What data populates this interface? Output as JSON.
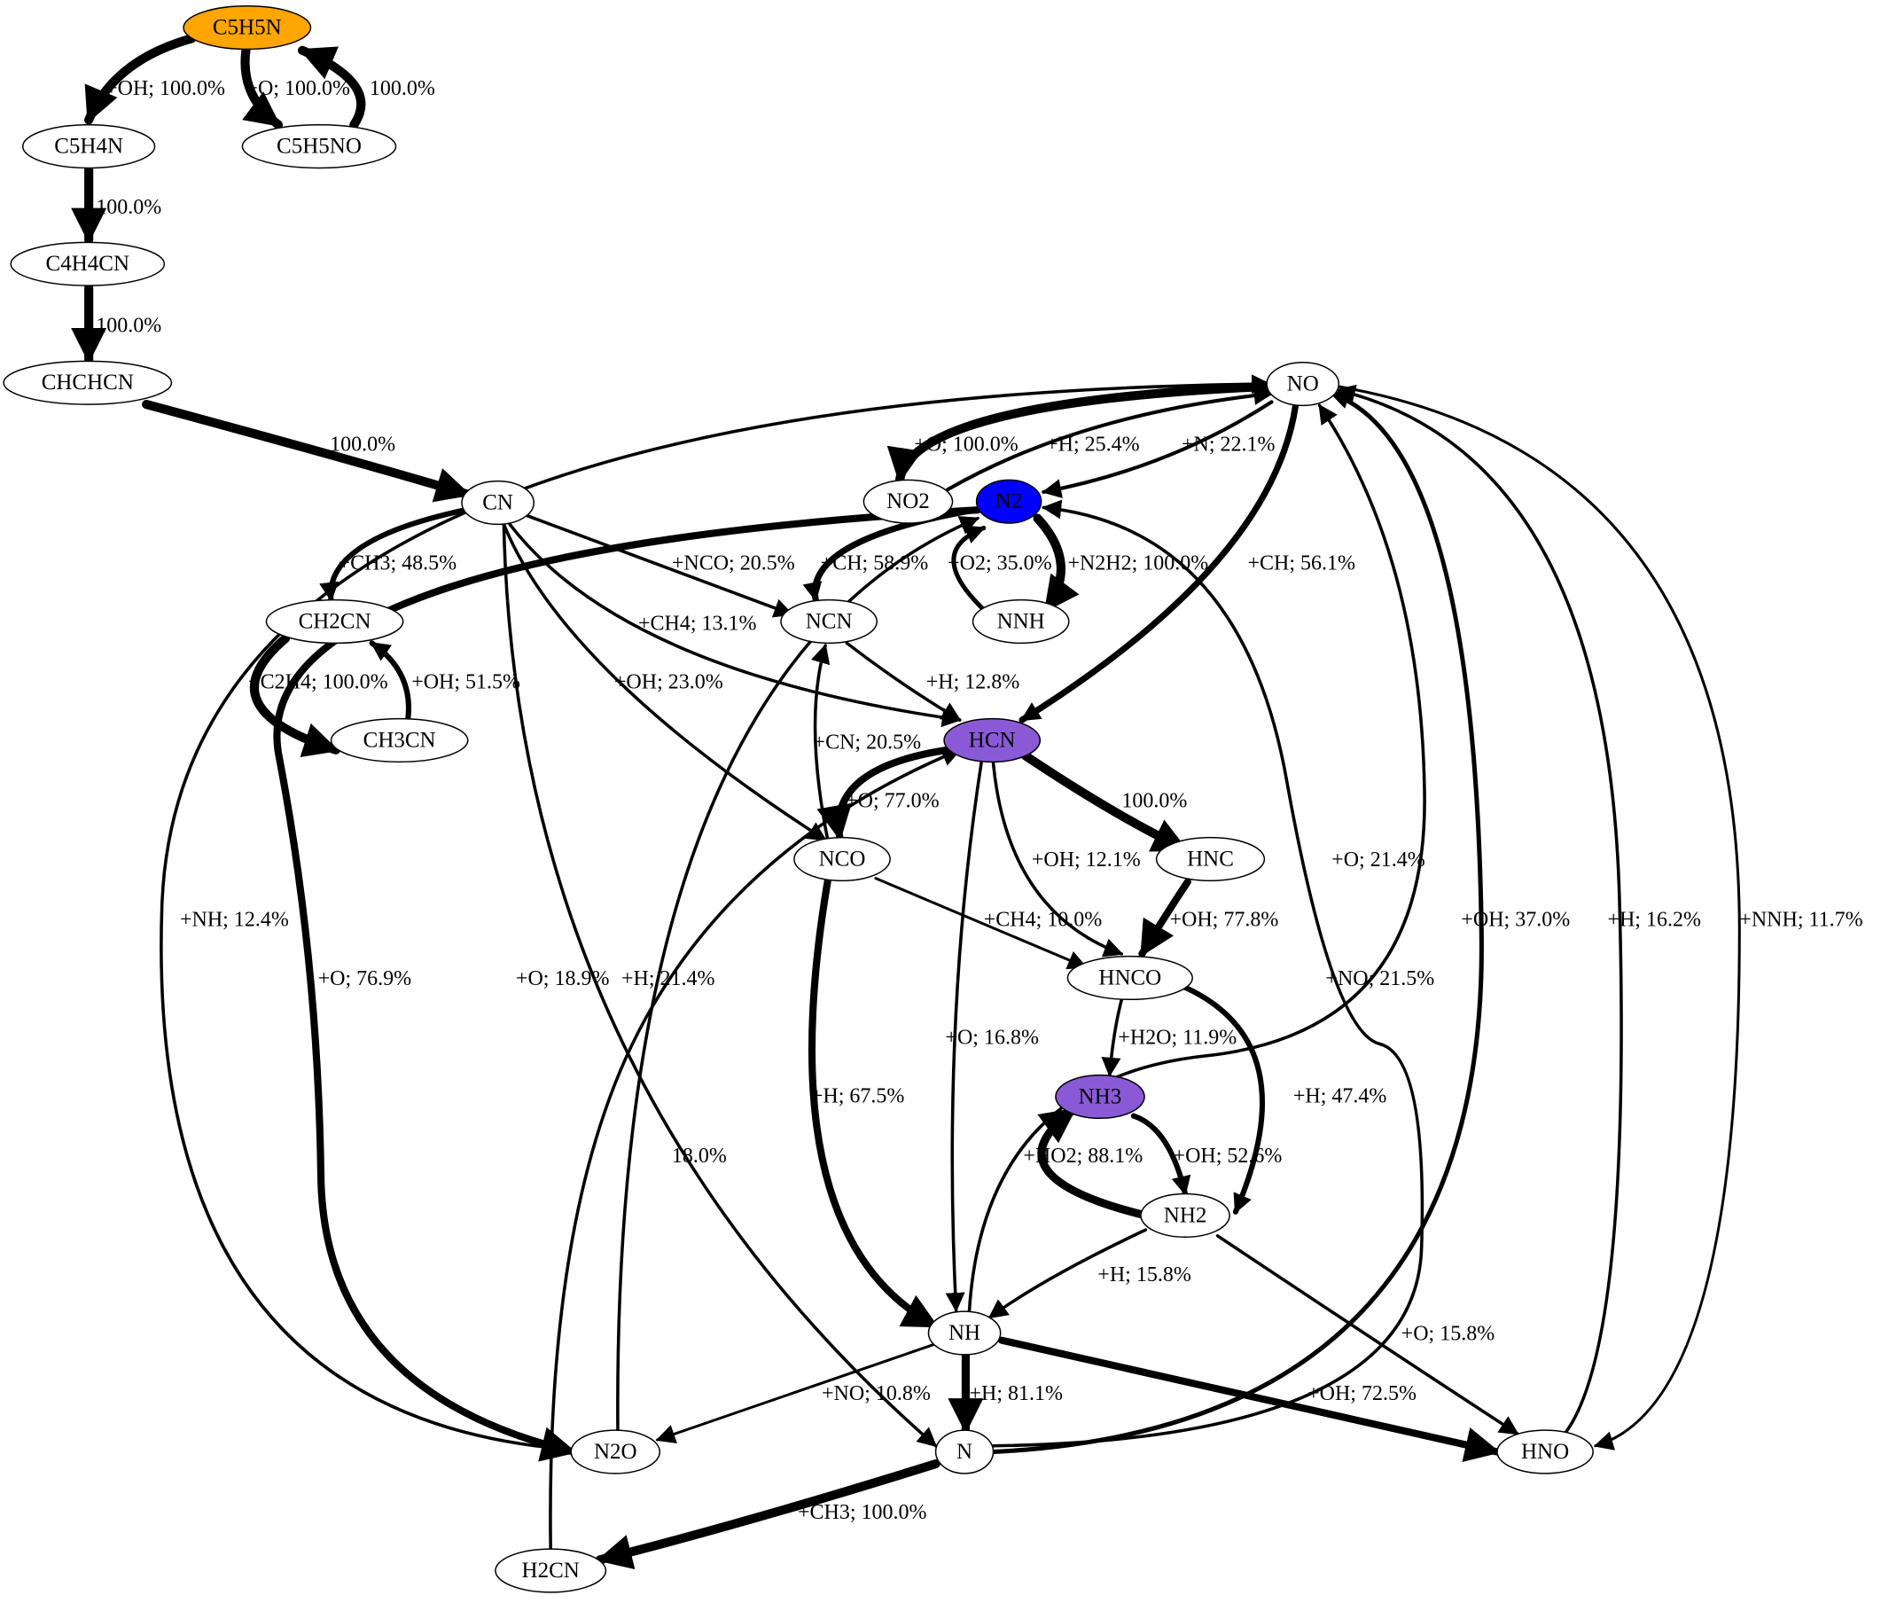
{
  "colors": {
    "default_node_fill": "#ffffff",
    "source_fill": "#ffa500",
    "n2_fill": "#0000ff",
    "product_fill": "#8a5ad6"
  },
  "nodes": [
    {
      "id": "C5H5N",
      "label": "C5H5N",
      "fill": "#ffa500"
    },
    {
      "id": "C5H4N",
      "label": "C5H4N"
    },
    {
      "id": "C5H5NO",
      "label": "C5H5NO"
    },
    {
      "id": "C4H4CN",
      "label": "C4H4CN"
    },
    {
      "id": "CHCHCN",
      "label": "CHCHCN"
    },
    {
      "id": "NO",
      "label": "NO"
    },
    {
      "id": "CN",
      "label": "CN"
    },
    {
      "id": "NO2",
      "label": "NO2"
    },
    {
      "id": "N2",
      "label": "N2",
      "fill": "#0000ff"
    },
    {
      "id": "CH2CN",
      "label": "CH2CN"
    },
    {
      "id": "NCN",
      "label": "NCN"
    },
    {
      "id": "NNH",
      "label": "NNH"
    },
    {
      "id": "CH3CN",
      "label": "CH3CN"
    },
    {
      "id": "HCN",
      "label": "HCN",
      "fill": "#8a5ad6"
    },
    {
      "id": "NCO",
      "label": "NCO"
    },
    {
      "id": "HNC",
      "label": "HNC"
    },
    {
      "id": "HNCO",
      "label": "HNCO"
    },
    {
      "id": "NH3",
      "label": "NH3",
      "fill": "#8a5ad6"
    },
    {
      "id": "NH2",
      "label": "NH2"
    },
    {
      "id": "NH",
      "label": "NH"
    },
    {
      "id": "N2O",
      "label": "N2O"
    },
    {
      "id": "N",
      "label": "N"
    },
    {
      "id": "HNO",
      "label": "HNO"
    },
    {
      "id": "H2CN",
      "label": "H2CN"
    }
  ],
  "edges": [
    {
      "from": "C5H5N",
      "to": "C5H4N",
      "label": "+OH; 100.0%",
      "width": 10
    },
    {
      "from": "C5H5N",
      "to": "C5H5NO",
      "label": "+O; 100.0%",
      "width": 10
    },
    {
      "from": "C5H5NO",
      "to": "C5H5N",
      "label": "100.0%",
      "width": 10
    },
    {
      "from": "C5H4N",
      "to": "C4H4CN",
      "label": "100.0%",
      "width": 10
    },
    {
      "from": "C4H4CN",
      "to": "CHCHCN",
      "label": "100.0%",
      "width": 10
    },
    {
      "from": "CHCHCN",
      "to": "CN",
      "label": "100.0%",
      "width": 10
    },
    {
      "from": "NO",
      "to": "NO2",
      "label": "+O; 100.0%",
      "width": 10
    },
    {
      "from": "NO2",
      "to": "N2",
      "label": "+H; 25.4%",
      "width": 4
    },
    {
      "from": "NO",
      "to": "N2",
      "label": "+N; 22.1%",
      "width": 4
    },
    {
      "from": "NO",
      "to": "HCN",
      "label": "+CH; 56.1%",
      "width": 7
    },
    {
      "from": "N2",
      "to": "NNH",
      "label": "+N2H2; 100.0%",
      "width": 10
    },
    {
      "from": "NNH",
      "to": "N2",
      "label": "+O2; 35.0%",
      "width": 5
    },
    {
      "from": "N2",
      "to": "NCN",
      "label": "+CH; 58.9%",
      "width": 7
    },
    {
      "from": "CN",
      "to": "CH2CN",
      "label": "+CH3; 48.5%",
      "width": 6
    },
    {
      "from": "CN",
      "to": "NCN",
      "label": "+NCO; 20.5%",
      "width": 3.5
    },
    {
      "from": "CN",
      "to": "HCN",
      "label": "+CH4; 13.1%",
      "width": 3.5
    },
    {
      "from": "CN",
      "to": "NCO",
      "label": "+OH; 23.0%",
      "width": 3.5
    },
    {
      "from": "CN",
      "to": "N",
      "label": "+O; 18.9%",
      "width": 3.5
    },
    {
      "from": "CH2CN",
      "to": "CH3CN",
      "label": "+C2H4; 100.0%",
      "width": 10
    },
    {
      "from": "CH3CN",
      "to": "CH2CN",
      "label": "+OH; 51.5%",
      "width": 6
    },
    {
      "from": "NCN",
      "to": "HCN",
      "label": "+H; 12.8%",
      "width": 3.5
    },
    {
      "from": "NCO",
      "to": "NCN",
      "label": "+CN; 20.5%",
      "width": 3.5
    },
    {
      "from": "HCN",
      "to": "NCO",
      "label": "+O; 77.0%",
      "width": 8
    },
    {
      "from": "HCN",
      "to": "HNC",
      "label": "100.0%",
      "width": 10
    },
    {
      "from": "HCN",
      "to": "HNCO",
      "label": "+OH; 12.1%",
      "width": 3.5
    },
    {
      "from": "HCN",
      "to": "NH",
      "label": "+O; 16.8%",
      "width": 3.5
    },
    {
      "from": "HNC",
      "to": "HNCO",
      "label": "+OH; 77.8%",
      "width": 8
    },
    {
      "from": "NCO",
      "to": "HNCO",
      "label": "+CH4; 10.0%",
      "width": 3
    },
    {
      "from": "NCO",
      "to": "NH",
      "label": "+H; 67.5%",
      "width": 8
    },
    {
      "from": "HNCO",
      "to": "NH3",
      "label": "+H2O; 11.9%",
      "width": 3.5
    },
    {
      "from": "HNCO",
      "to": "NH2",
      "label": "+H; 47.4%",
      "width": 6
    },
    {
      "from": "NH3",
      "to": "NH2",
      "label": "+OH; 52.6%",
      "width": 6
    },
    {
      "from": "NH2",
      "to": "NH3",
      "label": "+HO2; 88.1%",
      "width": 9
    },
    {
      "from": "NH2",
      "to": "NH",
      "label": "+H; 15.8%",
      "width": 3.5
    },
    {
      "from": "NH2",
      "to": "HNO",
      "label": "+O; 15.8%",
      "width": 3.5
    },
    {
      "from": "NH",
      "to": "NO",
      "label": "+O; 21.4%",
      "width": 3.5
    },
    {
      "from": "NH",
      "to": "N",
      "label": "+H; 81.1%",
      "width": 9
    },
    {
      "from": "NH",
      "to": "HNO",
      "label": "+OH; 72.5%",
      "width": 8
    },
    {
      "from": "NH",
      "to": "N2O",
      "label": "+NO; 10.8%",
      "width": 3
    },
    {
      "from": "N2O",
      "to": "NO",
      "label": "+NH; 12.4%",
      "width": 3.5
    },
    {
      "from": "N2O",
      "to": "N2",
      "label": "+H; 21.4%",
      "width": 3.5
    },
    {
      "from": "N2",
      "to": "N2O",
      "label": "+O; 76.9%",
      "width": 8
    },
    {
      "from": "N",
      "to": "NO",
      "label": "+OH; 37.0%",
      "width": 5
    },
    {
      "from": "N",
      "to": "N2",
      "label": "+NO; 21.5%",
      "width": 3.5
    },
    {
      "from": "N",
      "to": "H2CN",
      "label": "+CH3; 100.0%",
      "width": 10
    },
    {
      "from": "H2CN",
      "to": "HCN",
      "label": "18.0%",
      "width": 3.5
    },
    {
      "from": "HNO",
      "to": "NO",
      "label": "+H; 16.2%",
      "width": 3.5
    },
    {
      "from": "NO",
      "to": "HNO",
      "label": "+NNH; 11.7%",
      "width": 3
    }
  ]
}
